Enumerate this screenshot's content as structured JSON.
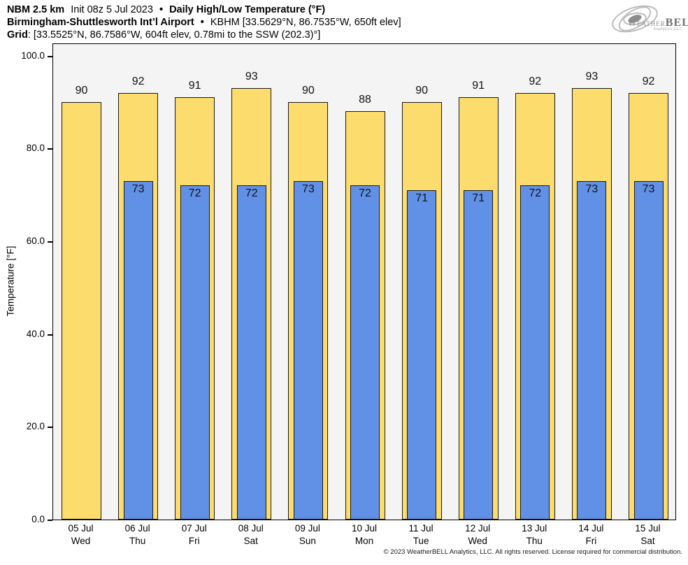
{
  "header": {
    "line1": {
      "model": "NBM 2.5 km",
      "init": "Init 08z 5 Jul 2023",
      "bullet": "•",
      "product": "Daily High/Low Temperature (°F)"
    },
    "line2": {
      "station": "Birmingham-Shuttlesworth Int’l Airport",
      "bullet": "•",
      "details": "KBHM [33.5629°N, 86.7535°W, 650ft elev]"
    },
    "line3": {
      "label": "Grid",
      "details": ": [33.5525°N, 86.7586°W, 604ft elev, 0.78mi to the SSW (202.3)°]"
    }
  },
  "logo": {
    "icon": "hurricane-swirl-icon",
    "word_weather": "Weather",
    "word_bell": "BELL",
    "subtitle": "Analytics LLC"
  },
  "chart_data": {
    "type": "bar",
    "title": "Daily High/Low Temperature (°F)",
    "xlabel": "",
    "ylabel": "Temperature [°F]",
    "ylim": [
      0,
      100
    ],
    "yticks": [
      0,
      20,
      40,
      60,
      80,
      100
    ],
    "ytick_labels": [
      "0.0",
      "20.0",
      "40.0",
      "60.0",
      "80.0",
      "100.0"
    ],
    "grid": false,
    "legend": "none",
    "plot_background": "#f4f4f4",
    "bar_border_color": "#1a1a1a",
    "categories": [
      {
        "date": "05 Jul",
        "day": "Wed"
      },
      {
        "date": "06 Jul",
        "day": "Thu"
      },
      {
        "date": "07 Jul",
        "day": "Fri"
      },
      {
        "date": "08 Jul",
        "day": "Sat"
      },
      {
        "date": "09 Jul",
        "day": "Sun"
      },
      {
        "date": "10 Jul",
        "day": "Mon"
      },
      {
        "date": "11 Jul",
        "day": "Tue"
      },
      {
        "date": "12 Jul",
        "day": "Wed"
      },
      {
        "date": "13 Jul",
        "day": "Thu"
      },
      {
        "date": "14 Jul",
        "day": "Fri"
      },
      {
        "date": "15 Jul",
        "day": "Sat"
      }
    ],
    "series": [
      {
        "name": "High",
        "color": "#fbdc6d",
        "values": [
          90,
          92,
          91,
          93,
          90,
          88,
          90,
          91,
          92,
          93,
          92
        ]
      },
      {
        "name": "Low",
        "color": "#6191e6",
        "values": [
          null,
          73,
          72,
          72,
          73,
          72,
          71,
          71,
          72,
          73,
          73
        ]
      }
    ]
  },
  "footer": {
    "copyright": "© 2023 WeatherBELL Analytics, LLC. All rights reserved. License required for commercial distribution."
  }
}
